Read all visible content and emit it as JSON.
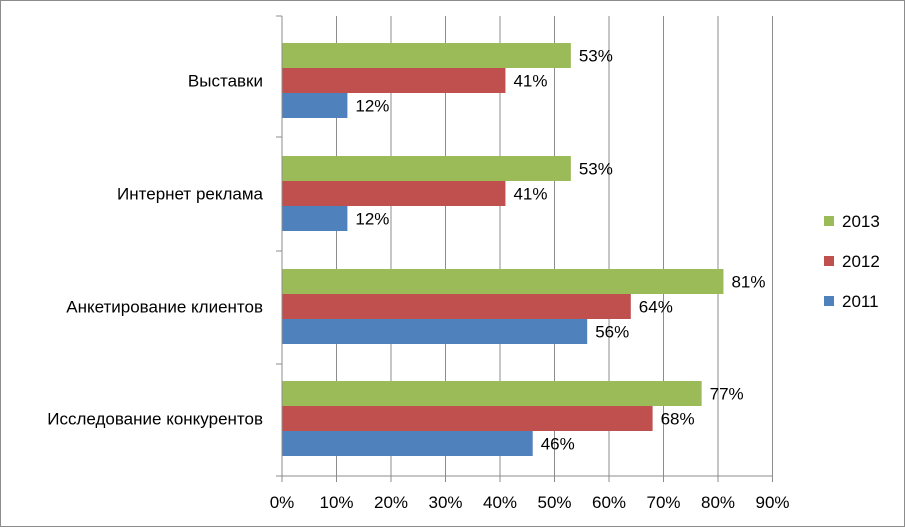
{
  "chart_data": {
    "type": "bar",
    "orientation": "horizontal",
    "categories": [
      "Выставки",
      "Интернет реклама",
      "Анкетирование клиентов",
      "Исследование конкурентов"
    ],
    "series": [
      {
        "name": "2013",
        "color": "#9BBB59",
        "values": [
          53,
          53,
          81,
          77
        ],
        "labels": [
          "53%",
          "53%",
          "81%",
          "77%"
        ]
      },
      {
        "name": "2012",
        "color": "#C0504D",
        "values": [
          41,
          41,
          64,
          68
        ],
        "labels": [
          "41%",
          "41%",
          "64%",
          "68%"
        ]
      },
      {
        "name": "2011",
        "color": "#4F81BD",
        "values": [
          12,
          12,
          56,
          46
        ],
        "labels": [
          "12%",
          "12%",
          "56%",
          "46%"
        ]
      }
    ],
    "xlim": [
      0,
      90
    ],
    "xticks": [
      0,
      10,
      20,
      30,
      40,
      50,
      60,
      70,
      80,
      90
    ],
    "xtick_labels": [
      "0%",
      "10%",
      "20%",
      "30%",
      "40%",
      "50%",
      "60%",
      "70%",
      "80%",
      "90%"
    ],
    "grid": true,
    "legend": {
      "position": "right",
      "entries": [
        "2013",
        "2012",
        "2011"
      ]
    },
    "title": "",
    "xlabel": "",
    "ylabel": ""
  }
}
